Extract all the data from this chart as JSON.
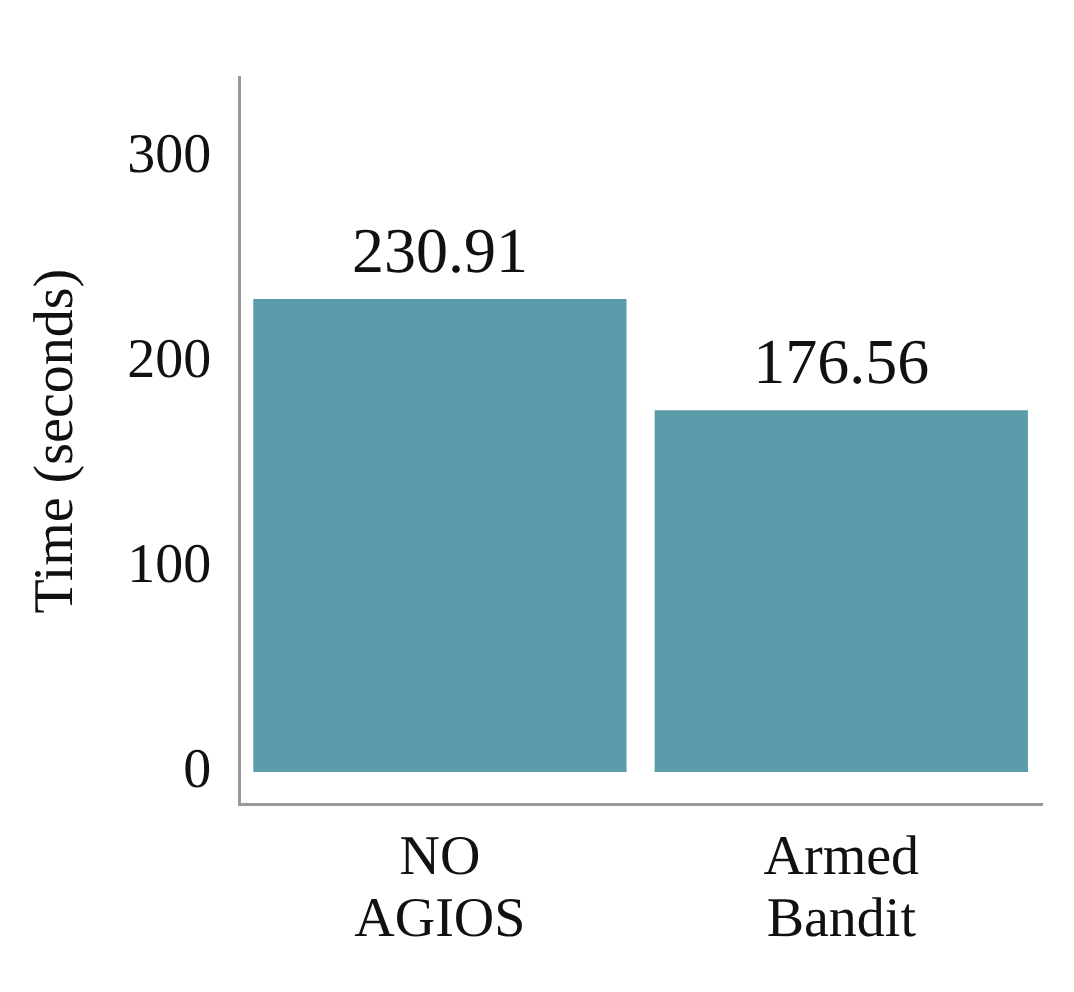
{
  "chart_data": {
    "type": "bar",
    "ylabel": "Time (seconds)",
    "categories": [
      "NO AGIOS",
      "Armed Bandit"
    ],
    "values": [
      230.91,
      176.56
    ],
    "color": "#5b9cab",
    "ylim": [
      -16,
      339
    ],
    "yticks": [
      0,
      100,
      200,
      300
    ],
    "data_labels": true,
    "grid": false,
    "legend": false
  }
}
